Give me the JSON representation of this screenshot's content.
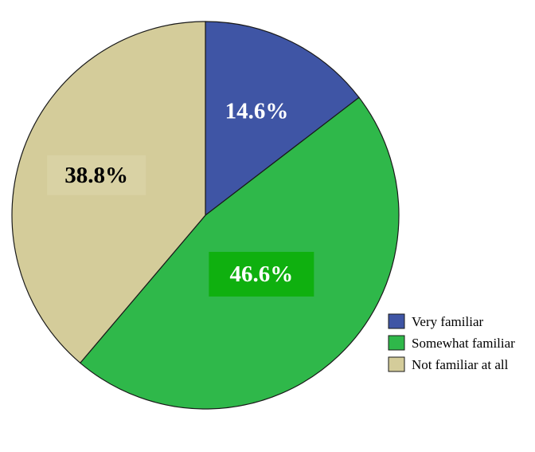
{
  "chart_data": {
    "type": "pie",
    "title": "",
    "start_angle": "12 o'clock",
    "direction": "clockwise",
    "slices": [
      {
        "label": "Very familiar",
        "value": 14.6,
        "value_label": "14.6%",
        "color": "#3f55a5",
        "label_color": "#ffffff",
        "label_box": "none"
      },
      {
        "label": "Somewhat familiar",
        "value": 46.6,
        "value_label": "46.6%",
        "color": "#2fb84a",
        "label_color": "#ffffff",
        "label_box": "#0fb00f"
      },
      {
        "label": "Not familiar at all",
        "value": 38.8,
        "value_label": "38.8%",
        "color": "#d4cc9a",
        "label_color": "#000000",
        "label_box": "#d9d2a4"
      }
    ],
    "legend": {
      "placement": "bottom-right"
    }
  }
}
